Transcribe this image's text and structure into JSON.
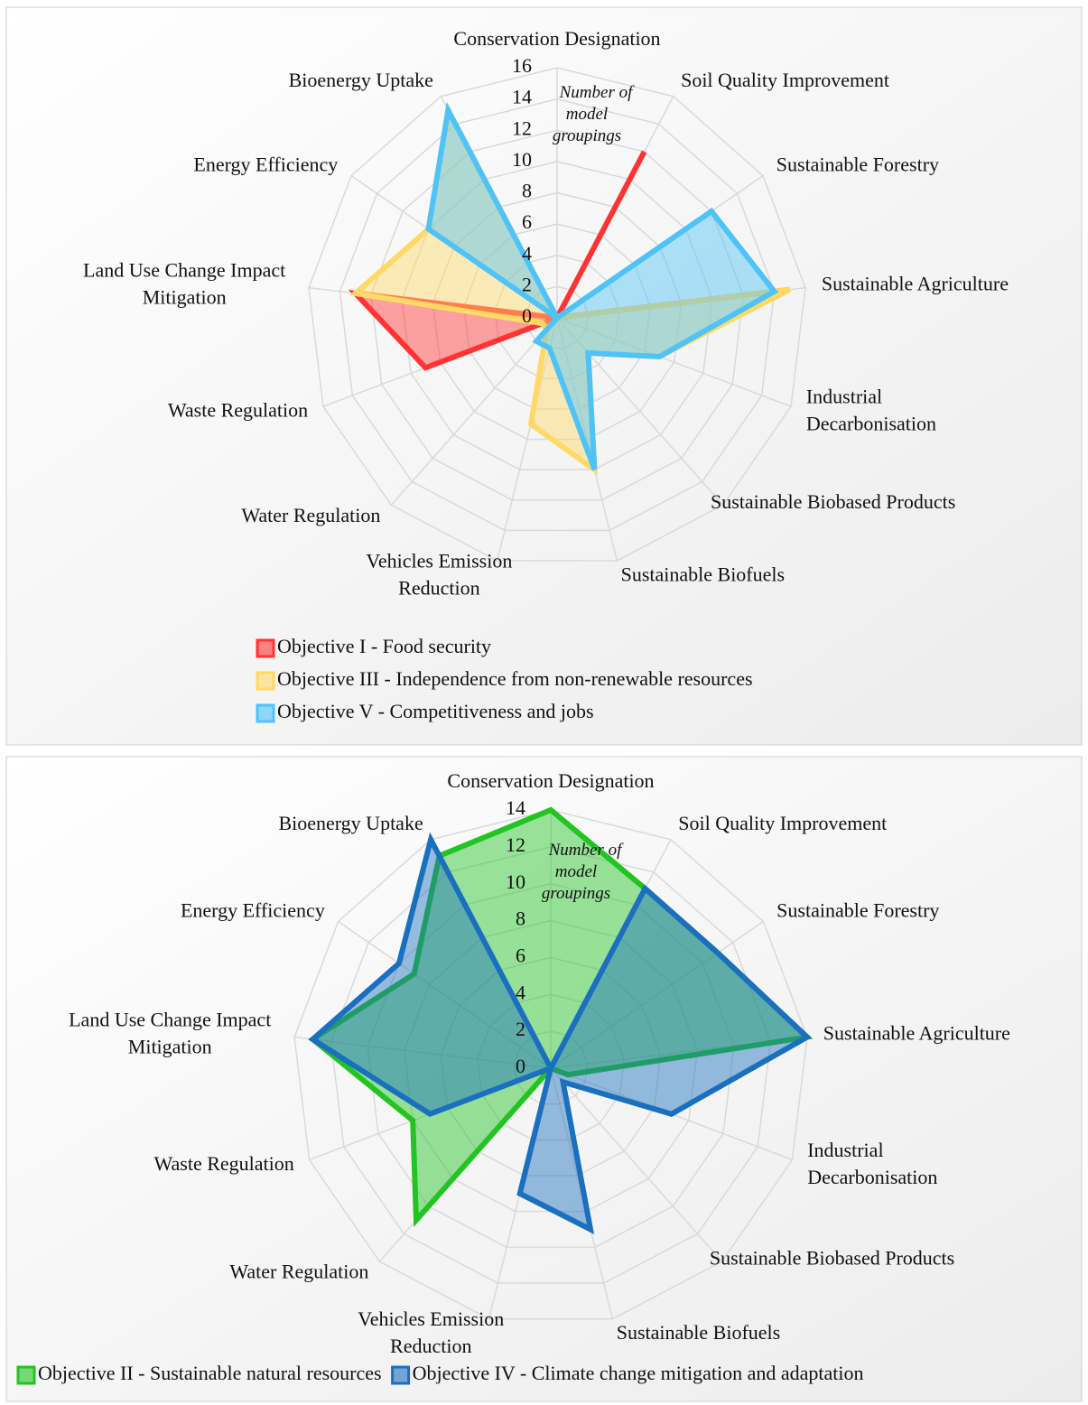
{
  "chart_data": [
    {
      "type": "radar",
      "categories": [
        "Conservation Designation",
        "Soil Quality Improvement",
        "Sustainable Forestry",
        "Sustainable Agriculture",
        "Industrial Decarbonisation",
        "Sustainable Biobased Products",
        "Sustainable Biofuels",
        "Vehicles Emission Reduction",
        "Water Regulation",
        "Waste Regulation",
        "Land Use Change Impact Mitigation",
        "Energy Efficiency",
        "Bioenergy Uptake"
      ],
      "series": [
        {
          "name": "Objective I - Food security",
          "color": "#ff3333",
          "values": [
            0,
            12,
            0,
            15,
            0,
            0,
            0,
            0,
            0,
            9,
            13,
            0,
            0
          ]
        },
        {
          "name": "Objective III - Independence from non-renewable resources",
          "color": "#ffd966",
          "values": [
            0,
            0,
            0,
            15,
            7,
            3,
            10,
            7,
            1,
            1,
            13,
            10,
            15
          ]
        },
        {
          "name": "Objective V - Competitiveness and jobs",
          "color": "#4fc3f7",
          "values": [
            0,
            0,
            12,
            14,
            7,
            3,
            10,
            2,
            2,
            0,
            0,
            10,
            15
          ]
        }
      ],
      "ylim": [
        0,
        16
      ],
      "yticks": [
        0,
        2,
        4,
        6,
        8,
        10,
        12,
        14,
        16
      ],
      "annotation": "Number of model groupings",
      "grid": true,
      "legend": "bottom"
    },
    {
      "type": "radar",
      "categories": [
        "Conservation Designation",
        "Soil Quality Improvement",
        "Sustainable Forestry",
        "Sustainable Agriculture",
        "Industrial Decarbonisation",
        "Sustainable Biobased Products",
        "Sustainable Biofuels",
        "Vehicles Emission Reduction",
        "Water Regulation",
        "Waste Regulation",
        "Land Use Change Impact Mitigation",
        "Energy Efficiency",
        "Bioenergy Uptake"
      ],
      "series": [
        {
          "name": "Objective II - Sustainable natural resources",
          "color": "#22c422",
          "values": [
            14,
            11,
            11,
            14,
            1,
            0,
            0,
            0,
            11,
            8,
            13,
            9,
            13
          ]
        },
        {
          "name": "Objective IV - Climate change mitigation and adaptation",
          "color": "#1a6fbf",
          "values": [
            0,
            11,
            11,
            14,
            7,
            1,
            9,
            7,
            0,
            7,
            13,
            10,
            14
          ]
        }
      ],
      "ylim": [
        0,
        14
      ],
      "yticks": [
        0,
        2,
        4,
        6,
        8,
        10,
        12,
        14
      ],
      "annotation": "Number of model groupings",
      "grid": true,
      "legend": "bottom"
    }
  ]
}
